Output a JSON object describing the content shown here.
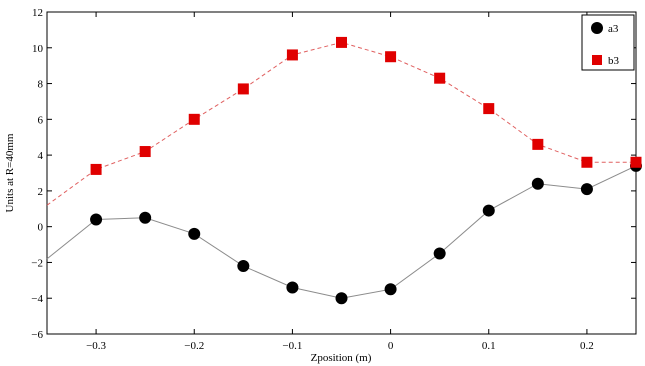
{
  "chart_data": {
    "type": "line",
    "title": "",
    "xlabel": "Zposition (m)",
    "ylabel": "Units at R=40mm",
    "xlim": [
      -0.35,
      0.25
    ],
    "ylim": [
      -6,
      12
    ],
    "xticks": [
      -0.3,
      -0.2,
      -0.1,
      0,
      0.1,
      0.2
    ],
    "xtick_labels": [
      "−0.3",
      "−0.2",
      "−0.1",
      "0",
      "0.1",
      "0.2"
    ],
    "yticks": [
      -6,
      -4,
      -2,
      0,
      2,
      4,
      6,
      8,
      10,
      12
    ],
    "ytick_labels": [
      "−6",
      "−4",
      "−2",
      "0",
      "2",
      "4",
      "6",
      "8",
      "10",
      "12"
    ],
    "grid": false,
    "legend_position": "top-right",
    "series": [
      {
        "name": "a3",
        "color": "#000000",
        "line_color": "#8c8c8c",
        "line_style": "solid",
        "marker": "circle",
        "x": [
          -0.35,
          -0.3,
          -0.25,
          -0.2,
          -0.15,
          -0.1,
          -0.05,
          0,
          0.05,
          0.1,
          0.15,
          0.2,
          0.25
        ],
        "y": [
          -1.8,
          0.4,
          0.5,
          -0.4,
          -2.2,
          -3.4,
          -4.0,
          -3.5,
          -1.5,
          0.9,
          2.4,
          2.1,
          3.4
        ],
        "marked": [
          false,
          true,
          true,
          true,
          true,
          true,
          true,
          true,
          true,
          true,
          true,
          true,
          true
        ]
      },
      {
        "name": "b3",
        "color": "#e00000",
        "line_color": "#e06060",
        "line_style": "dashed",
        "marker": "square",
        "x": [
          -0.35,
          -0.3,
          -0.25,
          -0.2,
          -0.15,
          -0.1,
          -0.05,
          0,
          0.05,
          0.1,
          0.15,
          0.2,
          0.25
        ],
        "y": [
          1.2,
          3.2,
          4.2,
          6.0,
          7.7,
          9.6,
          10.3,
          9.5,
          8.3,
          6.6,
          4.6,
          3.6,
          3.6
        ],
        "marked": [
          false,
          true,
          true,
          true,
          true,
          true,
          true,
          true,
          true,
          true,
          true,
          true,
          true
        ]
      }
    ]
  }
}
